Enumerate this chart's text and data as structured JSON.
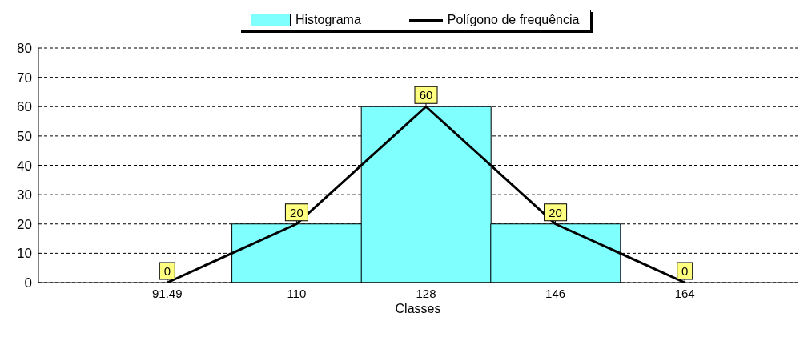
{
  "chart_data": {
    "type": "bar",
    "xlabel": "Classes",
    "categories": [
      "91.49",
      "110",
      "128",
      "146",
      "164"
    ],
    "series": [
      {
        "name": "Histograma",
        "color": "#80ffff",
        "values": [
          0,
          20,
          60,
          20,
          0
        ]
      },
      {
        "name": "Polígono de frequência",
        "type": "line",
        "color": "#000000",
        "values": [
          0,
          20,
          60,
          20,
          0
        ],
        "value_labels": [
          "0",
          "20",
          "60",
          "20",
          "0"
        ]
      }
    ],
    "ylim": [
      0,
      80
    ],
    "yticks": [
      0,
      10,
      20,
      30,
      40,
      50,
      60,
      70,
      80
    ],
    "grid": "y",
    "legend": "top",
    "marker": "none",
    "line_style": "solid"
  }
}
